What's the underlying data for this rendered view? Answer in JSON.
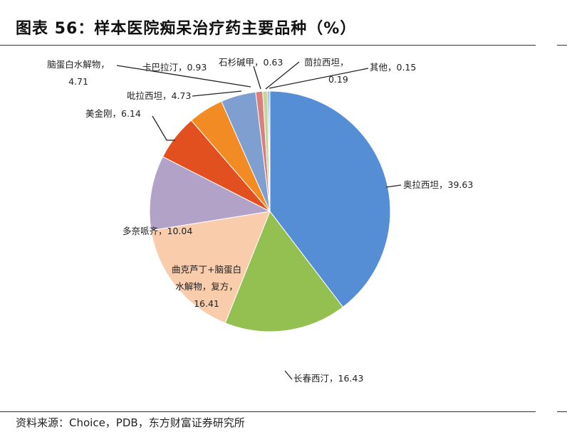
{
  "header": {
    "title": "图表 56：样本医院痴呆治疗药主要品种（%）"
  },
  "footer": {
    "source": "资料来源：Choice，PDB，东方财富证券研究所"
  },
  "chart_data": {
    "type": "pie",
    "title": "图表 56：样本医院痴呆治疗药主要品种（%）",
    "slices": [
      {
        "name": "奥拉西坦",
        "value": 39.63,
        "color": "#558ed5"
      },
      {
        "name": "长春西汀",
        "value": 16.43,
        "color": "#93c050"
      },
      {
        "name": "曲克芦丁+脑蛋白水解物，复方",
        "value": 16.41,
        "color": "#f9ccac"
      },
      {
        "name": "多奈哌齐",
        "value": 10.04,
        "color": "#b3a2c7"
      },
      {
        "name": "美金刚",
        "value": 6.14,
        "color": "#e3501f"
      },
      {
        "name": "吡拉西坦",
        "value": 4.73,
        "color": "#f38b24"
      },
      {
        "name": "脑蛋白水解物",
        "value": 4.71,
        "color": "#7f9fd1"
      },
      {
        "name": "卡巴拉汀",
        "value": 0.93,
        "color": "#db7f7c"
      },
      {
        "name": "石杉碱甲",
        "value": 0.63,
        "color": "#c4d79b"
      },
      {
        "name": "茴拉西坦",
        "value": 0.19,
        "color": "#8e7cc3"
      },
      {
        "name": "其他",
        "value": 0.15,
        "color": "#4bacc6"
      }
    ],
    "labels": [
      {
        "text": "奥拉西坦，39.63"
      },
      {
        "text": "长春西汀，16.43"
      },
      {
        "lines": [
          "曲克芦丁+脑蛋白",
          "水解物，复方，",
          "16.41"
        ]
      },
      {
        "text": "多奈哌齐，10.04"
      },
      {
        "text": "美金刚，6.14"
      },
      {
        "text": "吡拉西坦，4.73"
      },
      {
        "lines": [
          "脑蛋白水解物，",
          "4.71"
        ]
      },
      {
        "text": "卡巴拉汀，0.93"
      },
      {
        "text": "石杉碱甲，0.63"
      },
      {
        "lines": [
          "茴拉西坦，",
          "0.19"
        ]
      },
      {
        "text": "其他，0.15"
      }
    ]
  }
}
